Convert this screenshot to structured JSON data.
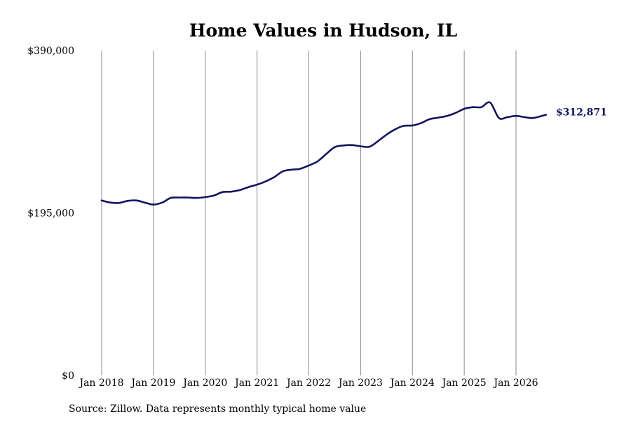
{
  "chart_data": {
    "type": "line",
    "title": "Home Values in Hudson, IL",
    "source": "Source: Zillow. Data represents monthly typical home value",
    "ylim": [
      0,
      390000
    ],
    "y_ticks": [
      {
        "value": 0,
        "label": "$0"
      },
      {
        "value": 195000,
        "label": "$195,000"
      },
      {
        "value": 390000,
        "label": "$390,000"
      }
    ],
    "x_ticks": [
      {
        "value": 2018,
        "label": "Jan 2018"
      },
      {
        "value": 2019,
        "label": "Jan 2019"
      },
      {
        "value": 2020,
        "label": "Jan 2020"
      },
      {
        "value": 2021,
        "label": "Jan 2021"
      },
      {
        "value": 2022,
        "label": "Jan 2022"
      },
      {
        "value": 2023,
        "label": "Jan 2023"
      },
      {
        "value": 2024,
        "label": "Jan 2024"
      },
      {
        "value": 2025,
        "label": "Jan 2025"
      },
      {
        "value": 2026,
        "label": "Jan 2026"
      }
    ],
    "xlim": [
      2018,
      2026
    ],
    "grid": "vertical",
    "line_color": "#14145e",
    "series": [
      {
        "end_label": "$312,871",
        "x": [
          2018.0,
          2018.17,
          2018.33,
          2018.5,
          2018.67,
          2018.83,
          2019.0,
          2019.17,
          2019.33,
          2019.5,
          2019.67,
          2019.83,
          2020.0,
          2020.17,
          2020.33,
          2020.5,
          2020.67,
          2020.83,
          2021.0,
          2021.17,
          2021.33,
          2021.5,
          2021.67,
          2021.83,
          2022.0,
          2022.17,
          2022.33,
          2022.5,
          2022.67,
          2022.83,
          2023.0,
          2023.17,
          2023.33,
          2023.5,
          2023.67,
          2023.83,
          2024.0,
          2024.17,
          2024.33,
          2024.5,
          2024.67,
          2024.83,
          2025.0,
          2025.17,
          2025.33,
          2025.5,
          2025.67,
          2025.83,
          2026.0,
          2026.17,
          2026.33,
          2026.58
        ],
        "values": [
          210000,
          207500,
          207000,
          209500,
          210000,
          207500,
          205000,
          207500,
          213000,
          213500,
          213500,
          213000,
          214000,
          216000,
          220000,
          220500,
          222500,
          226000,
          229000,
          233000,
          238000,
          245000,
          247000,
          248000,
          252000,
          257000,
          265500,
          274000,
          276000,
          276500,
          275000,
          274500,
          281000,
          289000,
          295500,
          299500,
          300000,
          303000,
          307500,
          309500,
          311500,
          315000,
          320000,
          322000,
          322000,
          327500,
          309000,
          310000,
          311500,
          310000,
          309000,
          312871
        ]
      }
    ]
  }
}
